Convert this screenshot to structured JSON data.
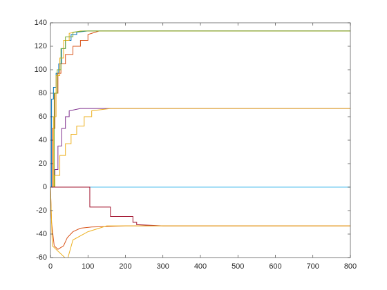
{
  "chart_data": {
    "type": "line",
    "xlim": [
      0,
      800
    ],
    "xticks": [
      0,
      100,
      200,
      300,
      400,
      500,
      600,
      700,
      800
    ],
    "ylim": [
      -60,
      140
    ],
    "yticks": [
      -60,
      -40,
      -20,
      0,
      20,
      40,
      60,
      80,
      100,
      120,
      140
    ],
    "grid": false,
    "series": [
      {
        "color": "#0072bd",
        "x": [
          0,
          3,
          3,
          8,
          8,
          15,
          15,
          22,
          22,
          30,
          30,
          40,
          40,
          55,
          55,
          70,
          70,
          100,
          800
        ],
        "values": [
          0,
          0,
          75,
          75,
          85,
          85,
          97,
          97,
          105,
          105,
          118,
          118,
          125,
          125,
          130,
          130,
          132,
          133,
          133
        ]
      },
      {
        "color": "#d95319",
        "x": [
          0,
          5,
          5,
          12,
          12,
          20,
          20,
          28,
          28,
          40,
          40,
          60,
          60,
          80,
          80,
          100,
          100,
          130,
          800
        ],
        "values": [
          0,
          0,
          50,
          50,
          80,
          80,
          97,
          97,
          105,
          105,
          113,
          113,
          120,
          120,
          125,
          125,
          130,
          133,
          133
        ]
      },
      {
        "color": "#edb120",
        "x": [
          0,
          8,
          8,
          15,
          15,
          25,
          25,
          35,
          35,
          50,
          50,
          80,
          800
        ],
        "values": [
          0,
          0,
          60,
          60,
          95,
          95,
          110,
          110,
          125,
          125,
          131,
          133,
          133
        ]
      },
      {
        "color": "#77ac30",
        "x": [
          0,
          10,
          10,
          18,
          18,
          28,
          28,
          40,
          40,
          60,
          60,
          90,
          800
        ],
        "values": [
          0,
          0,
          80,
          80,
          100,
          100,
          118,
          118,
          128,
          128,
          132,
          133,
          133
        ]
      },
      {
        "color": "#7e2f8e",
        "x": [
          0,
          12,
          12,
          20,
          20,
          30,
          30,
          40,
          40,
          50,
          50,
          80,
          800
        ],
        "values": [
          0,
          0,
          15,
          15,
          35,
          35,
          50,
          50,
          60,
          60,
          65,
          67,
          67
        ]
      },
      {
        "color": "#edb120",
        "x": [
          0,
          12,
          12,
          25,
          25,
          40,
          40,
          55,
          55,
          70,
          70,
          90,
          90,
          110,
          110,
          160,
          800
        ],
        "values": [
          0,
          0,
          10,
          10,
          27,
          27,
          37,
          37,
          45,
          45,
          52,
          52,
          60,
          60,
          65,
          67,
          67
        ]
      },
      {
        "color": "#4dbeee",
        "x": [
          0,
          800
        ],
        "values": [
          0,
          0
        ]
      },
      {
        "color": "#a2142f",
        "x": [
          0,
          105,
          105,
          160,
          160,
          220,
          220,
          230,
          230,
          300,
          800
        ],
        "values": [
          0,
          0,
          -17,
          -17,
          -25,
          -25,
          -30,
          -30,
          -32,
          -33,
          -33
        ]
      },
      {
        "color": "#d95319",
        "x": [
          0,
          3,
          3,
          10,
          10,
          20,
          20,
          35,
          35,
          45,
          45,
          60,
          60,
          80,
          80,
          110,
          110,
          200,
          800
        ],
        "values": [
          0,
          -30,
          -30,
          -50,
          -50,
          -53,
          -53,
          -50,
          -50,
          -43,
          -43,
          -38,
          -38,
          -35,
          -35,
          -34,
          -34,
          -33,
          -33
        ]
      },
      {
        "color": "#edb120",
        "x": [
          0,
          5,
          5,
          45,
          45,
          60,
          60,
          100,
          100,
          150,
          800
        ],
        "values": [
          0,
          -50,
          -50,
          -62,
          -62,
          -45,
          -45,
          -38,
          -38,
          -33,
          -33
        ]
      }
    ]
  }
}
